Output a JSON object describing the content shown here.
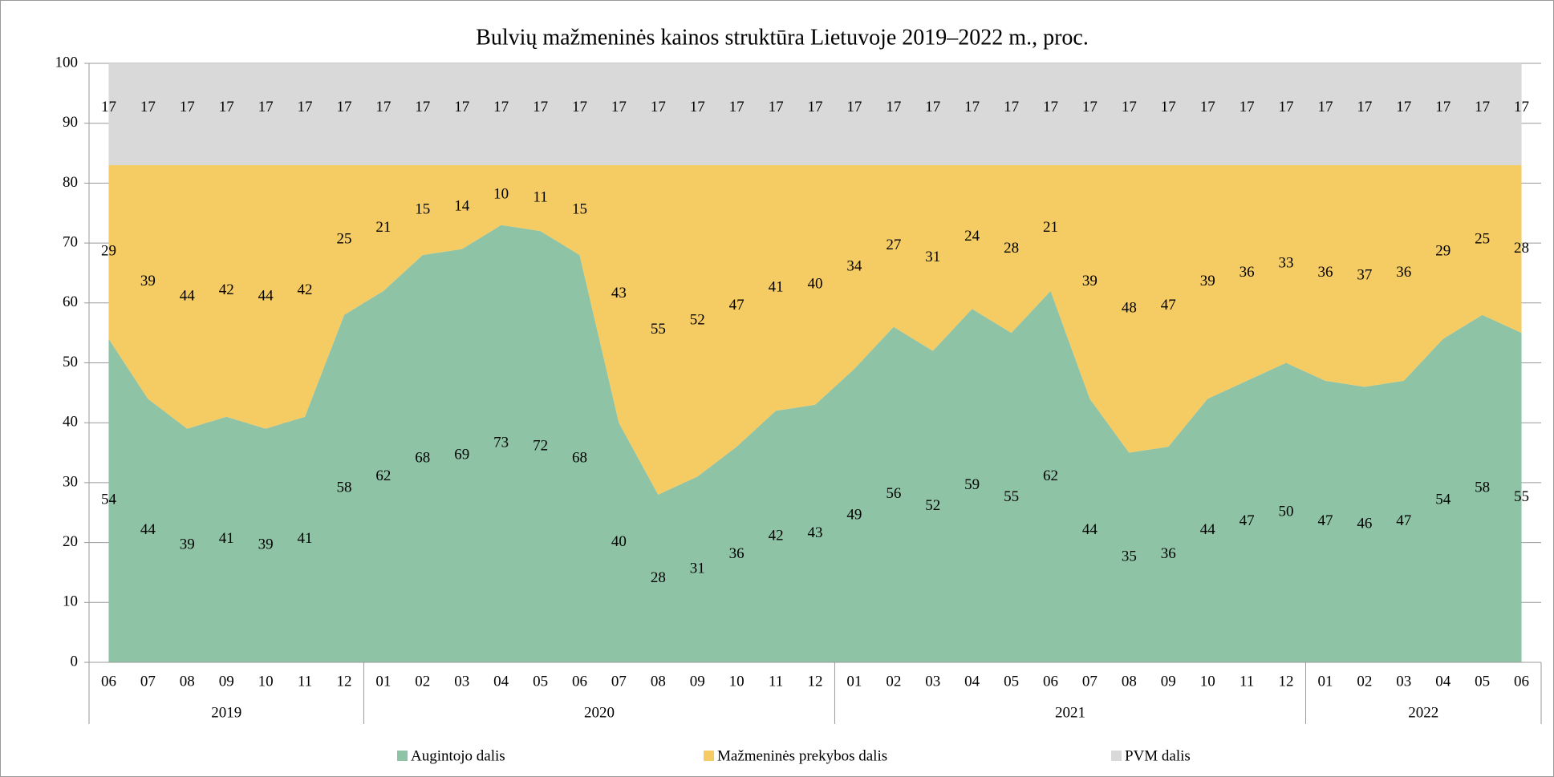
{
  "chart_data": {
    "type": "stacked_area",
    "title": "Bulvių mažmeninės kainos struktūra Lietuvoje 2019–2022 m., proc.",
    "categories": [
      "06",
      "07",
      "08",
      "09",
      "10",
      "11",
      "12",
      "01",
      "02",
      "03",
      "04",
      "05",
      "06",
      "07",
      "08",
      "09",
      "10",
      "11",
      "12",
      "01",
      "02",
      "03",
      "04",
      "05",
      "06",
      "07",
      "08",
      "09",
      "10",
      "11",
      "12",
      "01",
      "02",
      "03",
      "04",
      "05",
      "06"
    ],
    "year_groups": [
      {
        "label": "2019",
        "span": 7
      },
      {
        "label": "2020",
        "span": 12
      },
      {
        "label": "2021",
        "span": 12
      },
      {
        "label": "2022",
        "span": 6
      }
    ],
    "series": [
      {
        "name": "Augintojo dalis",
        "color": "#8fc3a6",
        "values": [
          54,
          44,
          39,
          41,
          39,
          41,
          58,
          62,
          68,
          69,
          73,
          72,
          68,
          40,
          28,
          31,
          36,
          42,
          43,
          49,
          56,
          52,
          59,
          55,
          62,
          44,
          35,
          36,
          44,
          47,
          50,
          47,
          46,
          47,
          54,
          58,
          55
        ]
      },
      {
        "name": "Mažmeninės prekybos dalis",
        "color": "#f5cb63",
        "values": [
          29,
          39,
          44,
          42,
          44,
          42,
          25,
          21,
          15,
          14,
          10,
          11,
          15,
          43,
          55,
          52,
          47,
          41,
          40,
          34,
          27,
          31,
          24,
          28,
          21,
          39,
          48,
          47,
          39,
          36,
          33,
          36,
          37,
          36,
          29,
          25,
          28
        ]
      },
      {
        "name": "PVM dalis",
        "color": "#d9d9d9",
        "values": [
          17,
          17,
          17,
          17,
          17,
          17,
          17,
          17,
          17,
          17,
          17,
          17,
          17,
          17,
          17,
          17,
          17,
          17,
          17,
          17,
          17,
          17,
          17,
          17,
          17,
          17,
          17,
          17,
          17,
          17,
          17,
          17,
          17,
          17,
          17,
          17,
          17
        ]
      }
    ],
    "ylim": [
      0,
      100
    ],
    "yticks": [
      0,
      10,
      20,
      30,
      40,
      50,
      60,
      70,
      80,
      90,
      100
    ],
    "grid": true,
    "legend": "bottom"
  }
}
